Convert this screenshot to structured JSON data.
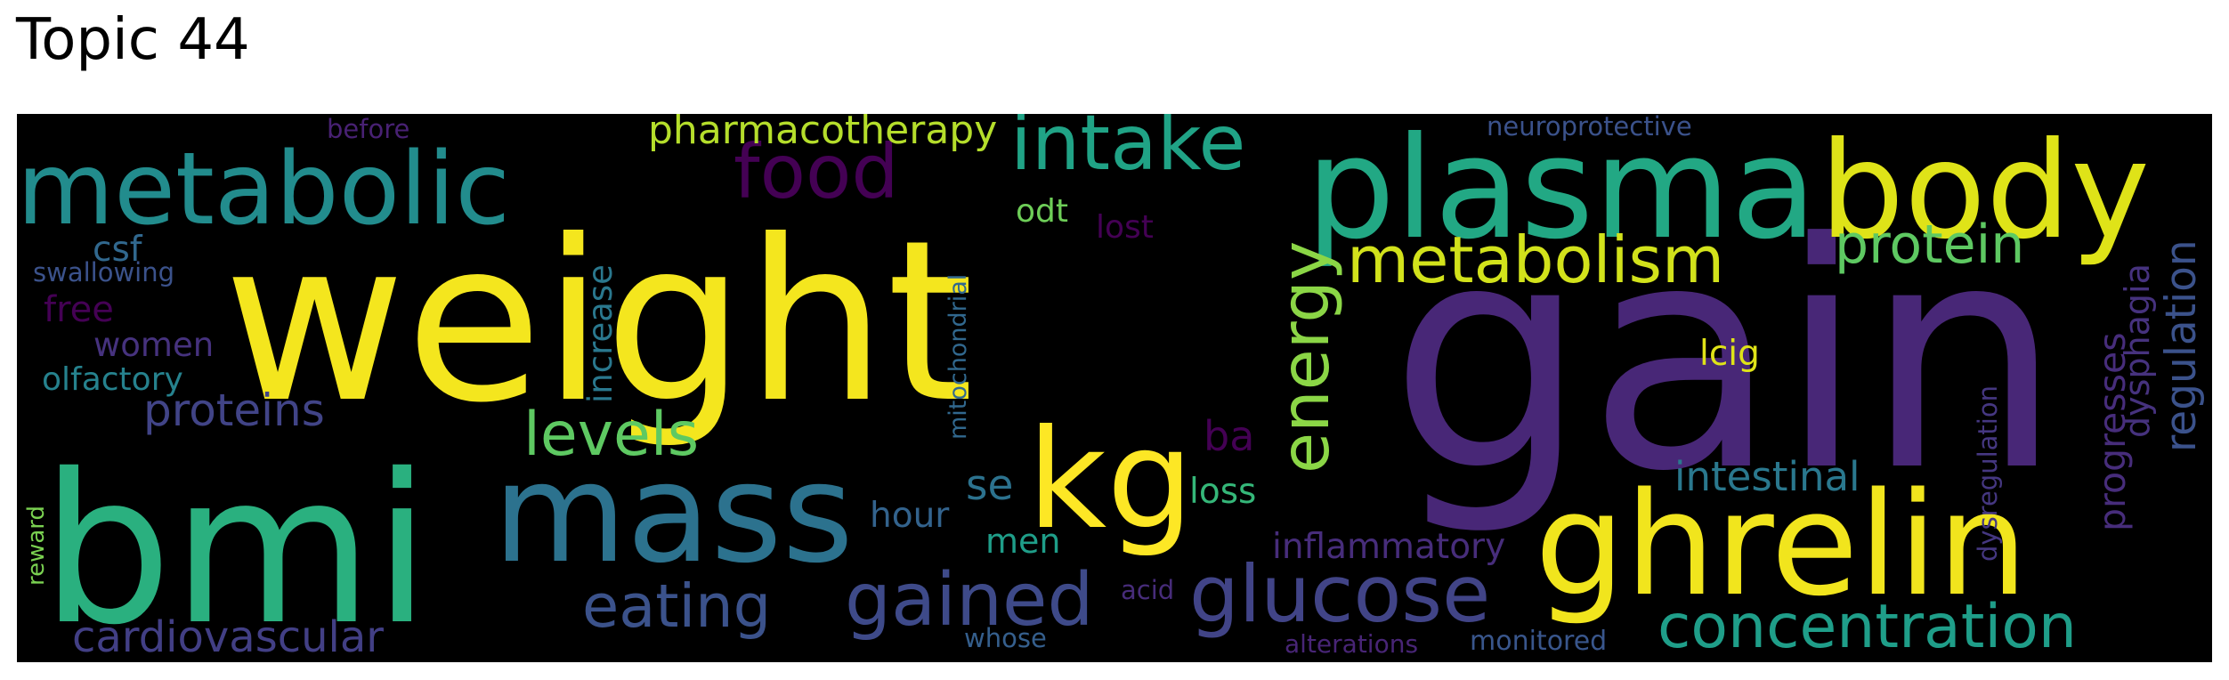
{
  "figure": {
    "title": "Topic 44"
  },
  "wordcloud": {
    "background": "#000000",
    "words": [
      {
        "text": "weight",
        "color": "#f4e61e"
      },
      {
        "text": "gain",
        "color": "#482777"
      },
      {
        "text": "bmi",
        "color": "#2ab07f"
      },
      {
        "text": "mass",
        "color": "#2c728e"
      },
      {
        "text": "ghrelin",
        "color": "#f1e51d"
      },
      {
        "text": "kg",
        "color": "#fde725"
      },
      {
        "text": "plasma",
        "color": "#22a884"
      },
      {
        "text": "body",
        "color": "#dfe318"
      },
      {
        "text": "metabolic",
        "color": "#228c8d"
      },
      {
        "text": "intake",
        "color": "#20a386"
      },
      {
        "text": "food",
        "color": "#440154"
      },
      {
        "text": "metabolism",
        "color": "#d2e21b"
      },
      {
        "text": "protein",
        "color": "#5ec962"
      },
      {
        "text": "energy",
        "color": "#8bd646"
      },
      {
        "text": "levels",
        "color": "#5ec962"
      },
      {
        "text": "gained",
        "color": "#3e4a89"
      },
      {
        "text": "glucose",
        "color": "#414487"
      },
      {
        "text": "concentration",
        "color": "#1f9e89"
      },
      {
        "text": "eating",
        "color": "#3b528b"
      },
      {
        "text": "cardiovascular",
        "color": "#423f85"
      },
      {
        "text": "pharmacotherapy",
        "color": "#b5de2b"
      },
      {
        "text": "proteins",
        "color": "#414487"
      },
      {
        "text": "intestinal",
        "color": "#2a788e"
      },
      {
        "text": "inflammatory",
        "color": "#472d7b"
      },
      {
        "text": "regulation",
        "color": "#3b528b"
      },
      {
        "text": "dysphagia",
        "color": "#46327e"
      },
      {
        "text": "progresses",
        "color": "#472d7b"
      },
      {
        "text": "increase",
        "color": "#2a788e"
      },
      {
        "text": "csf",
        "color": "#31688e"
      },
      {
        "text": "olfactory",
        "color": "#26828e"
      },
      {
        "text": "women",
        "color": "#46327e"
      },
      {
        "text": "free",
        "color": "#440154"
      },
      {
        "text": "swallowing",
        "color": "#3b528b"
      },
      {
        "text": "before",
        "color": "#482173"
      },
      {
        "text": "reward",
        "color": "#7ad151"
      },
      {
        "text": "odt",
        "color": "#6ece58"
      },
      {
        "text": "lost",
        "color": "#440154"
      },
      {
        "text": "mitochondrial",
        "color": "#31688e"
      },
      {
        "text": "se",
        "color": "#2c728e"
      },
      {
        "text": "ba",
        "color": "#440154"
      },
      {
        "text": "loss",
        "color": "#35b779"
      },
      {
        "text": "hour",
        "color": "#33638d"
      },
      {
        "text": "men",
        "color": "#1f9e89"
      },
      {
        "text": "lcig",
        "color": "#dfe318"
      },
      {
        "text": "dysregulation",
        "color": "#453781"
      },
      {
        "text": "neuroprotective",
        "color": "#3b528b"
      },
      {
        "text": "acid",
        "color": "#472c7a"
      },
      {
        "text": "whose",
        "color": "#355f8d"
      },
      {
        "text": "alterations",
        "color": "#482576"
      },
      {
        "text": "monitored",
        "color": "#39568c"
      }
    ]
  }
}
